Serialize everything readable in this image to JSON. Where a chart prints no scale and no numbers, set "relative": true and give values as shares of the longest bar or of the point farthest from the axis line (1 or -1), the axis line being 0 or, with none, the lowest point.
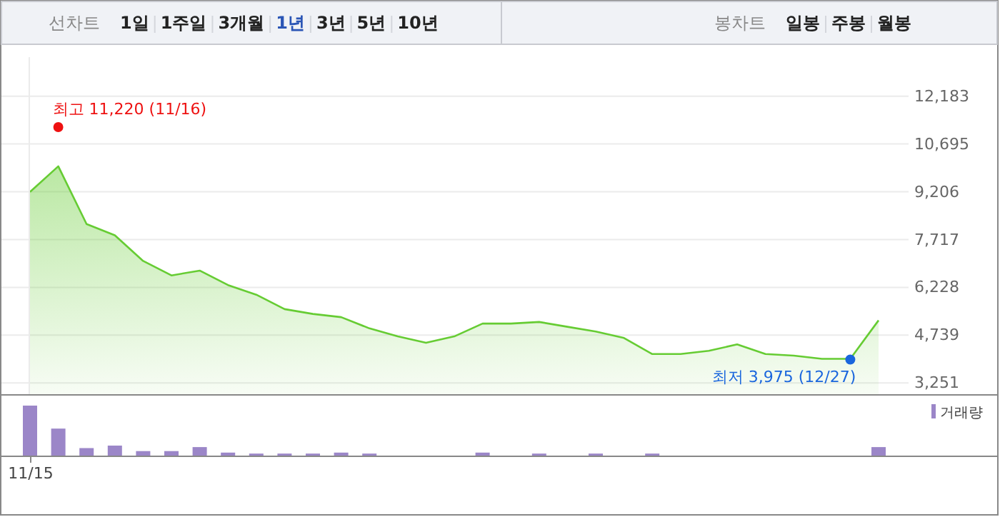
{
  "chart_data": [
    {
      "type": "area",
      "categories": [
        null,
        null,
        null,
        null,
        null,
        null,
        null,
        null,
        null,
        null,
        null,
        null,
        null,
        null,
        null,
        null,
        null,
        null,
        null,
        null,
        null,
        null,
        null,
        null,
        null,
        null,
        null,
        null,
        null,
        null,
        null
      ],
      "series": [
        {
          "color": "#66cc33",
          "values": [
            9200,
            10000,
            8200,
            7850,
            7050,
            6600,
            6750,
            6300,
            6000,
            5550,
            5400,
            5300,
            4950,
            4700,
            4500,
            4700,
            5100,
            5100,
            5150,
            5000,
            4850,
            4650,
            4150,
            4150,
            4250,
            4450,
            4150,
            4100,
            4000,
            4000,
            5200
          ]
        },
        {
          "type": "scatter",
          "colors": [
            null,
            "#ee1111",
            null,
            null,
            null,
            null,
            null,
            null,
            null,
            null,
            null,
            null,
            null,
            null,
            null,
            null,
            null,
            null,
            null,
            null,
            null,
            null,
            null,
            null,
            null,
            null,
            null,
            null,
            null,
            "#1a66dd",
            null
          ],
          "values": [
            null,
            11220,
            null,
            null,
            null,
            null,
            null,
            null,
            null,
            null,
            null,
            null,
            null,
            null,
            null,
            null,
            null,
            null,
            null,
            null,
            null,
            null,
            null,
            null,
            null,
            null,
            null,
            null,
            null,
            3980,
            null
          ]
        }
      ],
      "ylim": [
        2900,
        13400
      ],
      "yticks": [
        {
          "value": 3251,
          "label": "3,251"
        },
        {
          "value": 4739,
          "label": "4,739"
        },
        {
          "value": 6228,
          "label": "6,228"
        },
        {
          "value": 7717,
          "label": "7,717"
        },
        {
          "value": 9206,
          "label": "9,206"
        },
        {
          "value": 10695,
          "label": "10,695"
        },
        {
          "value": 12183,
          "label": "12,183"
        }
      ],
      "grid": "y",
      "tick_labels": "y",
      "annotations": [
        "선차트",
        "1일",
        "1주일",
        "3개월",
        "1년",
        "3년",
        "5년",
        "10년",
        "봉차트",
        "일봉",
        "주봉",
        "월봉",
        "최고 11,220 (11/16)",
        "최저 3,975 (12/27)"
      ]
    },
    {
      "type": "bar",
      "relative": true,
      "tick_labels": false,
      "annotations": [
        "11/15"
      ],
      "categories": [
        null,
        null,
        null,
        null,
        null,
        null,
        null,
        null,
        null,
        null,
        null,
        null,
        null,
        null,
        null,
        null,
        null,
        null,
        null,
        null,
        null,
        null,
        null,
        null,
        null,
        null,
        null,
        null,
        null,
        null,
        null
      ],
      "series": [
        {
          "name": "거래량",
          "color": "#9b86c8",
          "values": [
            1,
            0.54,
            0.15,
            0.2,
            0.09,
            0.09,
            0.17,
            0.06,
            0.04,
            0.04,
            0.04,
            0.06,
            0.04,
            null,
            null,
            null,
            0.06,
            null,
            0.04,
            null,
            0.04,
            null,
            0.04,
            null,
            null,
            null,
            null,
            null,
            null,
            null,
            0.17
          ]
        }
      ],
      "legend": "top right"
    }
  ]
}
